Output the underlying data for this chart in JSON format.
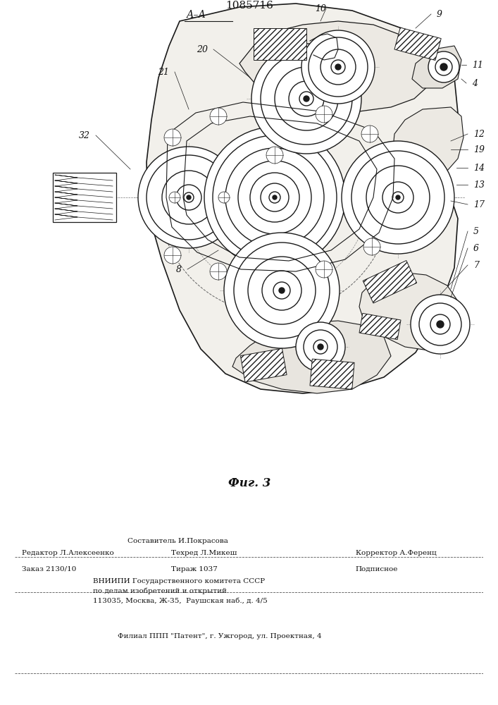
{
  "patent_number": "1085716",
  "fig_label": "Фиг. 3",
  "section_label": "А–А",
  "line_color": "#1a1a1a",
  "bg_color": "#ffffff",
  "footer": {
    "sostavitel": "Составитель И.Покрасова",
    "redaktor": "Редактор Л.Алексеенко",
    "tehred": "Техред Л.Микеш",
    "korrektor": "Корректор А.Ференц",
    "order": "Заказ 2130/10",
    "tirazh": "Тираж 1037",
    "podpisnoe": "Подписное",
    "vniip1": "ВНИИПИ Государственного комитета СССР",
    "vniip2": "по делам изобретений и открытий",
    "vniip3": "113035, Москва, Ж-35,  Раушская наб., д. 4/5",
    "filial": "Филиал ППП \"Патент\", г. Ужгород, ул. Проектная, 4"
  }
}
